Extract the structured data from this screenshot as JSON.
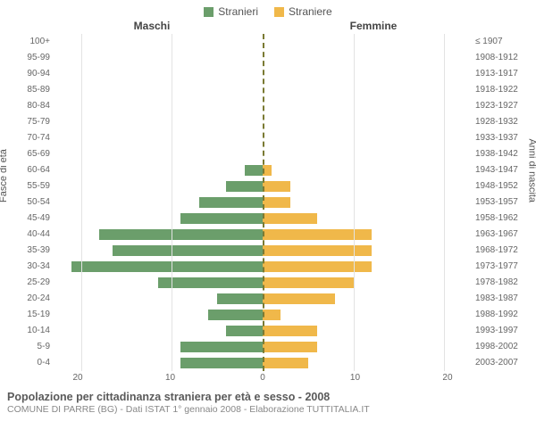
{
  "legend": {
    "male": {
      "label": "Stranieri",
      "color": "#6b9e6b"
    },
    "female": {
      "label": "Straniere",
      "color": "#f0b84a"
    }
  },
  "headers": {
    "left": "Maschi",
    "right": "Femmine"
  },
  "axis_labels": {
    "left": "Fasce di età",
    "right": "Anni di nascita"
  },
  "x": {
    "max": 23,
    "ticks_left": [
      "20",
      "10",
      "0"
    ],
    "ticks_right": [
      "0",
      "10",
      "20"
    ],
    "grid_values": [
      10,
      20
    ],
    "grid_color": "#e3e3e3",
    "center_color": "#7a7a33"
  },
  "rows": [
    {
      "age": "100+",
      "year": "≤ 1907",
      "m": 0,
      "f": 0
    },
    {
      "age": "95-99",
      "year": "1908-1912",
      "m": 0,
      "f": 0
    },
    {
      "age": "90-94",
      "year": "1913-1917",
      "m": 0,
      "f": 0
    },
    {
      "age": "85-89",
      "year": "1918-1922",
      "m": 0,
      "f": 0
    },
    {
      "age": "80-84",
      "year": "1923-1927",
      "m": 0,
      "f": 0
    },
    {
      "age": "75-79",
      "year": "1928-1932",
      "m": 0,
      "f": 0
    },
    {
      "age": "70-74",
      "year": "1933-1937",
      "m": 0,
      "f": 0
    },
    {
      "age": "65-69",
      "year": "1938-1942",
      "m": 0,
      "f": 0
    },
    {
      "age": "60-64",
      "year": "1943-1947",
      "m": 2,
      "f": 1
    },
    {
      "age": "55-59",
      "year": "1948-1952",
      "m": 4,
      "f": 3
    },
    {
      "age": "50-54",
      "year": "1953-1957",
      "m": 7,
      "f": 3
    },
    {
      "age": "45-49",
      "year": "1958-1962",
      "m": 9,
      "f": 6
    },
    {
      "age": "40-44",
      "year": "1963-1967",
      "m": 18,
      "f": 12
    },
    {
      "age": "35-39",
      "year": "1968-1972",
      "m": 16.5,
      "f": 12
    },
    {
      "age": "30-34",
      "year": "1973-1977",
      "m": 21,
      "f": 12
    },
    {
      "age": "25-29",
      "year": "1978-1982",
      "m": 11.5,
      "f": 10
    },
    {
      "age": "20-24",
      "year": "1983-1987",
      "m": 5,
      "f": 8
    },
    {
      "age": "15-19",
      "year": "1988-1992",
      "m": 6,
      "f": 2
    },
    {
      "age": "10-14",
      "year": "1993-1997",
      "m": 4,
      "f": 6
    },
    {
      "age": "5-9",
      "year": "1998-2002",
      "m": 9,
      "f": 6
    },
    {
      "age": "0-4",
      "year": "2003-2007",
      "m": 9,
      "f": 5
    }
  ],
  "style": {
    "bar_male_color": "#6b9e6b",
    "bar_female_color": "#f0b84a",
    "title_color": "#5a5a5a",
    "subtitle_color": "#888888",
    "tick_color": "#666666",
    "background": "#ffffff",
    "title_fontsize": 12.5,
    "subtitle_fontsize": 10.5,
    "tick_fontsize": 10
  },
  "footer": {
    "title": "Popolazione per cittadinanza straniera per età e sesso - 2008",
    "subtitle": "COMUNE DI PARRE (BG) - Dati ISTAT 1° gennaio 2008 - Elaborazione TUTTITALIA.IT"
  }
}
